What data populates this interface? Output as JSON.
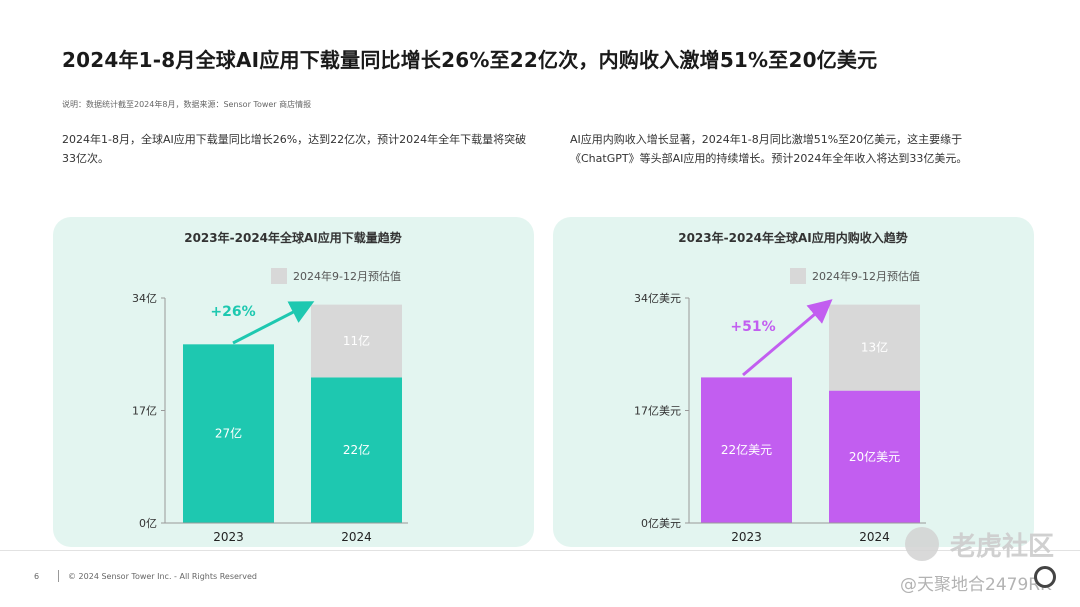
{
  "title": "2024年1-8月全球AI应用下载量同比增长26%至22亿次，内购收入激增51%至20亿美元",
  "source_note": "说明：数据统计截至2024年8月，数据来源：Sensor Tower 商店情报",
  "desc_left": "2024年1-8月，全球AI应用下载量同比增长26%，达到22亿次，预计2024年全年下载量将突破33亿次。",
  "desc_right": "AI应用内购收入增长显著，2024年1-8月同比激增51%至20亿美元，这主要缘于《ChatGPT》等头部AI应用的持续增长。预计2024年全年收入将达到33亿美元。",
  "footer": {
    "page": "6",
    "copyright": "© 2024 Sensor Tower Inc. - All Rights Reserved"
  },
  "watermark": {
    "brand": "老虎社区",
    "handle": "@天聚地合2479RK"
  },
  "colors": {
    "teal": "#1ec8b0",
    "purple": "#c25ef0",
    "estimate": "#d8d8d8",
    "panel_bg": "#e3f5f0",
    "arrow_teal": "#1ec8b0",
    "arrow_purple": "#c25ef0"
  },
  "chart_data": [
    {
      "type": "bar",
      "title": "2023年-2024年全球AI应用下载量趋势",
      "legend": "2024年9-12月预估值",
      "legend_position": "top",
      "categories": [
        "2023",
        "2024"
      ],
      "series": [
        {
          "name": "",
          "values": [
            27,
            22
          ],
          "labels": [
            "27亿",
            "22亿"
          ],
          "color": "#1ec8b0"
        },
        {
          "name": "2024年9-12月预估值",
          "values": [
            0,
            11
          ],
          "labels": [
            "",
            "11亿"
          ],
          "color": "#d8d8d8"
        }
      ],
      "yticks": [
        0,
        17,
        34
      ],
      "ytick_labels": [
        "0亿",
        "17亿",
        "34亿"
      ],
      "ylim": [
        0,
        34
      ],
      "grid": false,
      "annotation": "+26%",
      "annotation_color": "#1ec8b0"
    },
    {
      "type": "bar",
      "title": "2023年-2024年全球AI应用内购收入趋势",
      "legend": "2024年9-12月预估值",
      "legend_position": "top",
      "categories": [
        "2023",
        "2024"
      ],
      "series": [
        {
          "name": "",
          "values": [
            22,
            20
          ],
          "labels": [
            "22亿美元",
            "20亿美元"
          ],
          "color": "#c25ef0"
        },
        {
          "name": "2024年9-12月预估值",
          "values": [
            0,
            13
          ],
          "labels": [
            "",
            "13亿"
          ],
          "color": "#d8d8d8"
        }
      ],
      "yticks": [
        0,
        17,
        34
      ],
      "ytick_labels": [
        "0亿美元",
        "17亿美元",
        "34亿美元"
      ],
      "ylim": [
        0,
        34
      ],
      "grid": false,
      "annotation": "+51%",
      "annotation_color": "#c25ef0"
    }
  ]
}
